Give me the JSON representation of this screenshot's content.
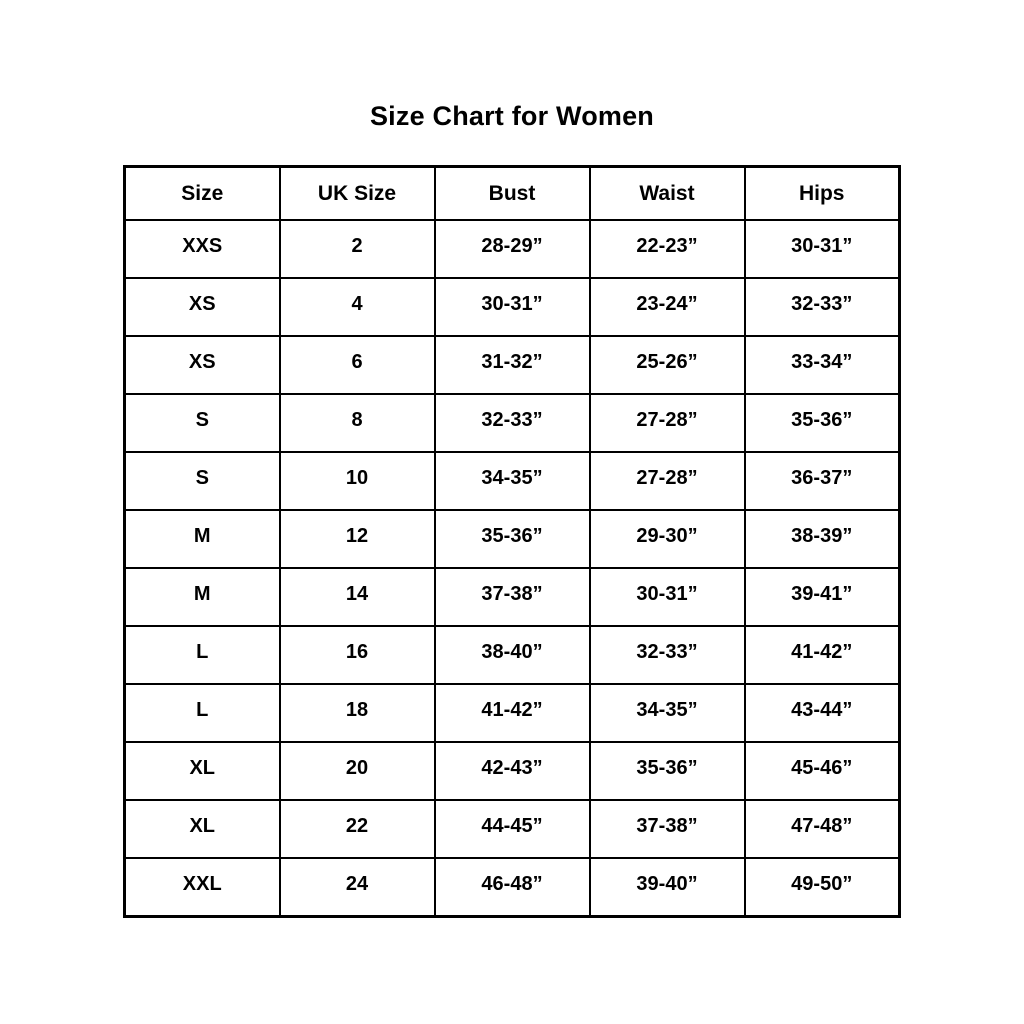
{
  "title": "Size Chart for Women",
  "colors": {
    "background": "#ffffff",
    "text": "#000000",
    "border": "#000000"
  },
  "table": {
    "headers": [
      "Size",
      "UK Size",
      "Bust",
      "Waist",
      "Hips"
    ],
    "rows": [
      [
        "XXS",
        "2",
        "28-29”",
        "22-23”",
        "30-31”"
      ],
      [
        "XS",
        "4",
        "30-31”",
        "23-24”",
        "32-33”"
      ],
      [
        "XS",
        "6",
        "31-32”",
        "25-26”",
        "33-34”"
      ],
      [
        "S",
        "8",
        "32-33”",
        "27-28”",
        "35-36”"
      ],
      [
        "S",
        "10",
        "34-35”",
        "27-28”",
        "36-37”"
      ],
      [
        "M",
        "12",
        "35-36”",
        "29-30”",
        "38-39”"
      ],
      [
        "M",
        "14",
        "37-38”",
        "30-31”",
        "39-41”"
      ],
      [
        "L",
        "16",
        "38-40”",
        "32-33”",
        "41-42”"
      ],
      [
        "L",
        "18",
        "41-42”",
        "34-35”",
        "43-44”"
      ],
      [
        "XL",
        "20",
        "42-43”",
        "35-36”",
        "45-46”"
      ],
      [
        "XL",
        "22",
        "44-45”",
        "37-38”",
        "47-48”"
      ],
      [
        "XXL",
        "24",
        "46-48”",
        "39-40”",
        "49-50”"
      ]
    ]
  },
  "chart_data": {
    "type": "table",
    "title": "Size Chart for Women",
    "columns": [
      "Size",
      "UK Size",
      "Bust",
      "Waist",
      "Hips"
    ],
    "rows": [
      [
        "XXS",
        "2",
        "28-29”",
        "22-23”",
        "30-31”"
      ],
      [
        "XS",
        "4",
        "30-31”",
        "23-24”",
        "32-33”"
      ],
      [
        "XS",
        "6",
        "31-32”",
        "25-26”",
        "33-34”"
      ],
      [
        "S",
        "8",
        "32-33”",
        "27-28”",
        "35-36”"
      ],
      [
        "S",
        "10",
        "34-35”",
        "27-28”",
        "36-37”"
      ],
      [
        "M",
        "12",
        "35-36”",
        "29-30”",
        "38-39”"
      ],
      [
        "M",
        "14",
        "37-38”",
        "30-31”",
        "39-41”"
      ],
      [
        "L",
        "16",
        "38-40”",
        "32-33”",
        "41-42”"
      ],
      [
        "L",
        "18",
        "41-42”",
        "34-35”",
        "43-44”"
      ],
      [
        "XL",
        "20",
        "42-43”",
        "35-36”",
        "45-46”"
      ],
      [
        "XL",
        "22",
        "44-45”",
        "37-38”",
        "47-48”"
      ],
      [
        "XXL",
        "24",
        "46-48”",
        "39-40”",
        "49-50”"
      ]
    ]
  }
}
